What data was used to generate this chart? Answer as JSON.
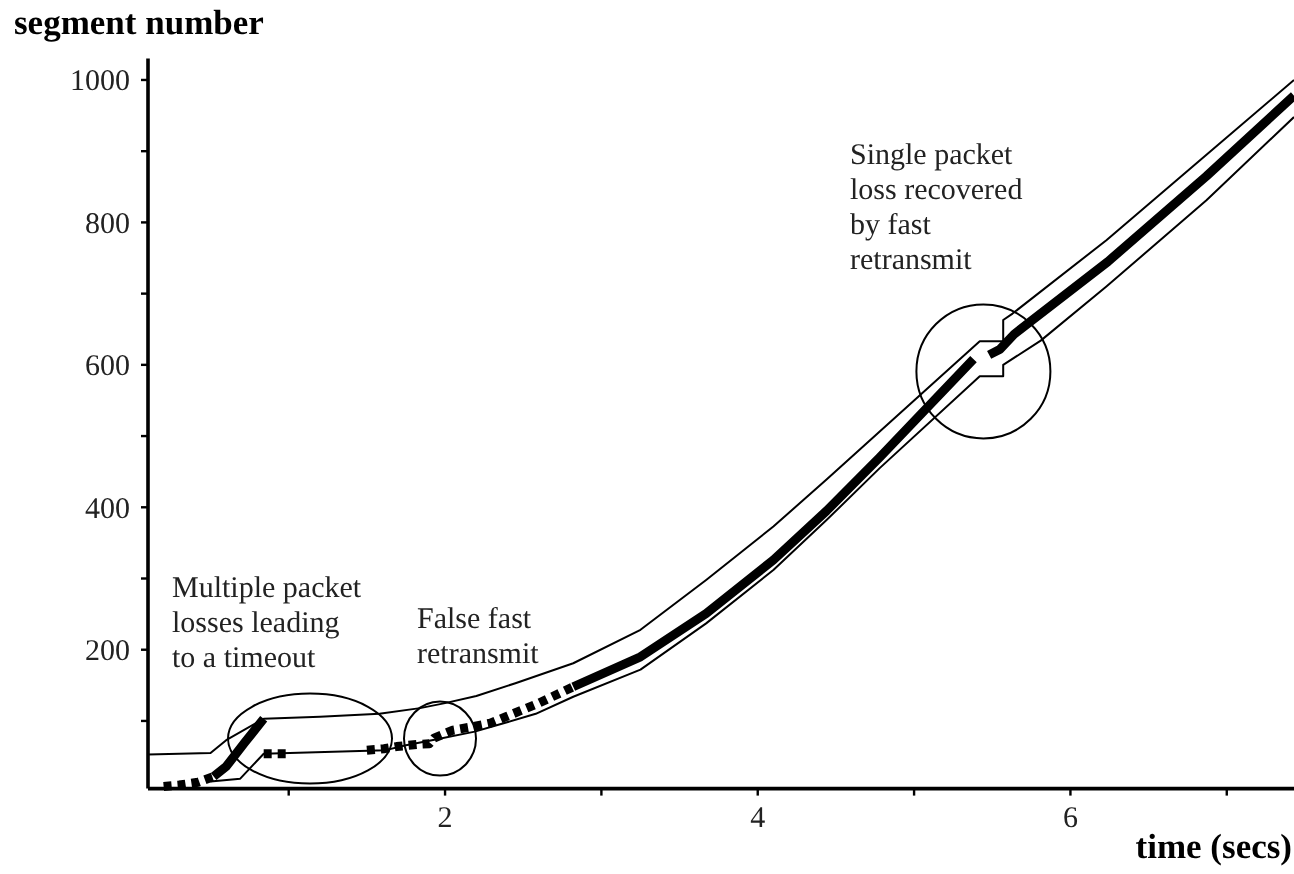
{
  "chart_data": {
    "type": "line",
    "xlabel": "time (secs)",
    "ylabel": "segment number",
    "xlim": [
      0.1,
      7.43
    ],
    "ylim": [
      5,
      1030
    ],
    "xticks": [
      {
        "value": 1,
        "label": null
      },
      2,
      {
        "value": 3,
        "label": null
      },
      4,
      {
        "value": 5,
        "label": null
      },
      6,
      {
        "value": 7,
        "label": null
      }
    ],
    "yticks": [
      {
        "value": 100,
        "label": null
      },
      200,
      {
        "value": 300,
        "label": null
      },
      400,
      {
        "value": 500,
        "label": null
      },
      600,
      {
        "value": 700,
        "label": null
      },
      800,
      {
        "value": 900,
        "label": null
      },
      1000
    ],
    "series": [
      {
        "color": "#000000",
        "line_style": "solid",
        "x": [
          0.1,
          0.5,
          0.6,
          0.84,
          1.2,
          1.58,
          1.84,
          2.0,
          2.2,
          2.45,
          2.82,
          3.25,
          3.67,
          4.1,
          4.44,
          5.0,
          5.42,
          5.57,
          5.57,
          5.63,
          6.23,
          6.87,
          7.43
        ],
        "values": [
          53,
          55,
          73,
          103,
          106,
          110,
          118,
          125,
          135,
          153,
          181,
          228,
          298,
          373,
          439,
          550,
          633,
          633,
          663,
          672,
          775,
          895,
          1000
        ]
      },
      {
        "color": "#000000",
        "line_style": "solid",
        "x": [
          0.52,
          0.6,
          0.72,
          0.84,
          0.85,
          2.82,
          3.25,
          3.67,
          4.1,
          4.44,
          4.78,
          5.38,
          5.43,
          5.48,
          5.55,
          5.64,
          6.24,
          6.87,
          7.43
        ],
        "values": [
          22,
          36,
          70,
          103,
          null,
          148,
          190,
          251,
          326,
          395,
          470,
          608,
          null,
          614,
          622,
          643,
          745,
          865,
          978
        ]
      },
      {
        "color": "#000000",
        "line_style": "dashed",
        "x": [
          0.2,
          0.3,
          0.42,
          0.52,
          0.6,
          0.84,
          0.99,
          1.2,
          1.5,
          1.61,
          1.69,
          1.82,
          1.9,
          1.93,
          2.05,
          2.18,
          2.29,
          2.39,
          2.6,
          2.82
        ],
        "values": [
          8,
          10,
          14,
          22,
          null,
          54,
          54,
          null,
          59,
          61,
          64,
          67,
          68,
          76,
          87,
          92,
          97,
          106,
          125,
          148
        ]
      },
      {
        "color": "#000000",
        "line_style": "solid",
        "x": [
          0.5,
          0.69,
          0.84,
          1.62,
          1.75,
          1.94,
          2.19,
          2.58,
          2.82,
          3.25,
          3.67,
          4.1,
          4.44,
          4.78,
          5.42,
          5.57,
          5.57,
          5.81,
          6.23,
          6.87,
          7.43
        ],
        "values": [
          15,
          19,
          54,
          59,
          66,
          74,
          85,
          110,
          134,
          172,
          237,
          312,
          382,
          455,
          584,
          584,
          600,
          634,
          710,
          831,
          948
        ]
      }
    ],
    "annotations": [
      "Multiple packet\nlosses leading\nto a timeout",
      "False fast\nretransmit",
      "Single packet\nloss recovered\nby fast\nretransmit"
    ]
  }
}
